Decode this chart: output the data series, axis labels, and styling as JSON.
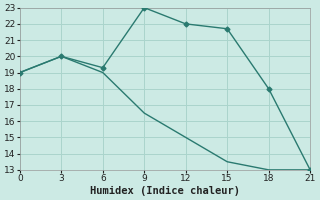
{
  "line1_x": [
    0,
    3,
    6,
    9,
    12,
    15,
    18,
    21
  ],
  "line1_y": [
    19,
    20,
    19.3,
    23,
    22,
    21.7,
    18,
    13
  ],
  "line2_x": [
    0,
    3,
    6,
    9,
    12,
    15,
    18,
    21
  ],
  "line2_y": [
    19,
    20,
    19,
    16.5,
    15,
    13.5,
    13,
    13
  ],
  "line_color": "#2a7a70",
  "bg_color": "#cceae4",
  "grid_color": "#aad4cc",
  "xlabel": "Humidex (Indice chaleur)",
  "xlim": [
    0,
    21
  ],
  "ylim": [
    13,
    23
  ],
  "xticks": [
    0,
    3,
    6,
    9,
    12,
    15,
    18,
    21
  ],
  "yticks": [
    13,
    14,
    15,
    16,
    17,
    18,
    19,
    20,
    21,
    22,
    23
  ],
  "label_fontsize": 7.5,
  "tick_fontsize": 6.5
}
